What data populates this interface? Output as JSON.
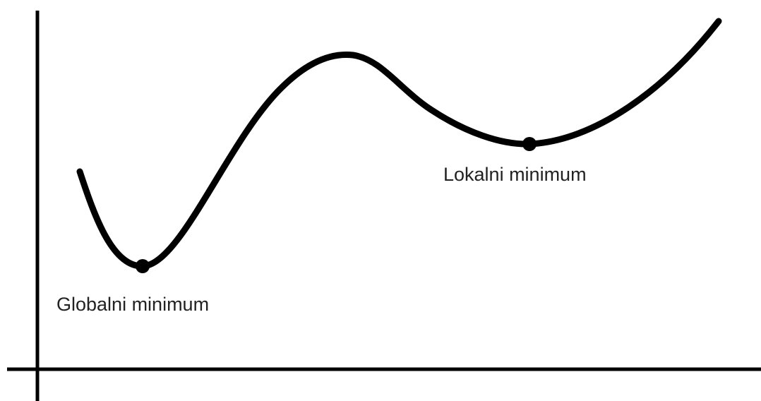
{
  "labels": {
    "global_minimum": "Globalni minimum",
    "local_minimum": "Lokalni minimum"
  }
}
